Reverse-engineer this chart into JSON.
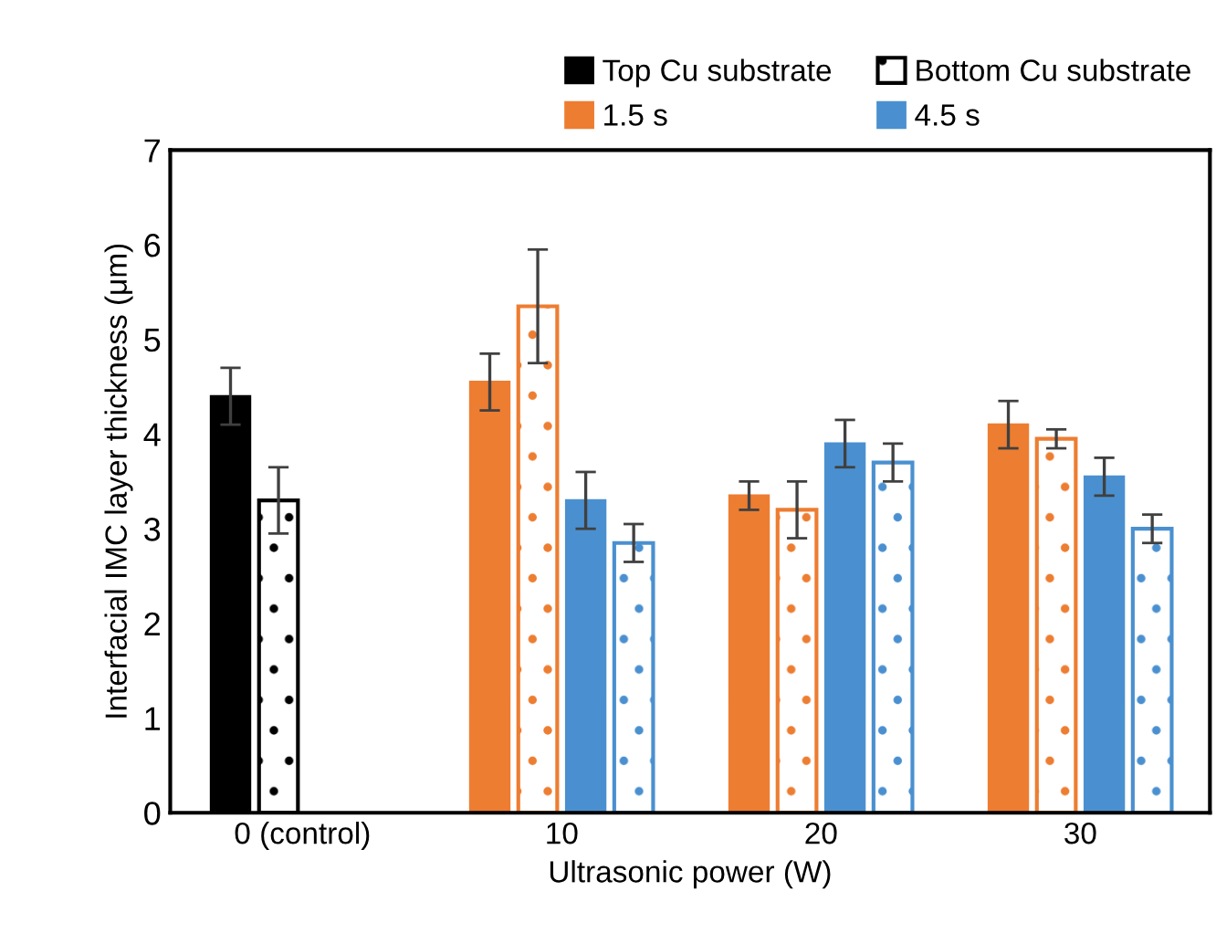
{
  "chart_data": {
    "type": "bar",
    "xlabel": "Ultrasonic power (W)",
    "ylabel": "Interfacial IMC layer thickness (μm)",
    "categories": [
      "0 (control)",
      "10",
      "20",
      "30"
    ],
    "series": [
      {
        "name": "Top Cu substrate",
        "color": "#000000",
        "values": [
          4.4,
          null,
          null,
          null
        ],
        "errors": [
          0.3,
          null,
          null,
          null
        ]
      },
      {
        "name": "Bottom Cu substrate",
        "color": "#000000",
        "line_style": "dotted",
        "values": [
          3.3,
          null,
          null,
          null
        ],
        "errors": [
          0.35,
          null,
          null,
          null
        ]
      },
      {
        "name": "1.5 s",
        "color": "#ed7d31",
        "values": [
          null,
          4.55,
          3.35,
          4.1
        ],
        "errors": [
          null,
          0.3,
          0.15,
          0.25
        ]
      },
      {
        "color": "#ed7d31",
        "line_style": "dotted",
        "values": [
          null,
          5.35,
          3.2,
          3.95
        ],
        "errors": [
          null,
          0.6,
          0.3,
          0.1
        ]
      },
      {
        "name": "4.5 s",
        "color": "#4a90d0",
        "values": [
          null,
          3.3,
          3.9,
          3.55
        ],
        "errors": [
          null,
          0.3,
          0.25,
          0.2
        ]
      },
      {
        "color": "#4a90d0",
        "line_style": "dotted",
        "values": [
          null,
          2.85,
          3.7,
          3.0
        ],
        "errors": [
          null,
          0.2,
          0.2,
          0.15
        ]
      }
    ],
    "ylim": [
      0,
      7
    ],
    "yticks": [
      0,
      1,
      2,
      3,
      4,
      5,
      6,
      7
    ],
    "grid": false,
    "legend": "top"
  }
}
